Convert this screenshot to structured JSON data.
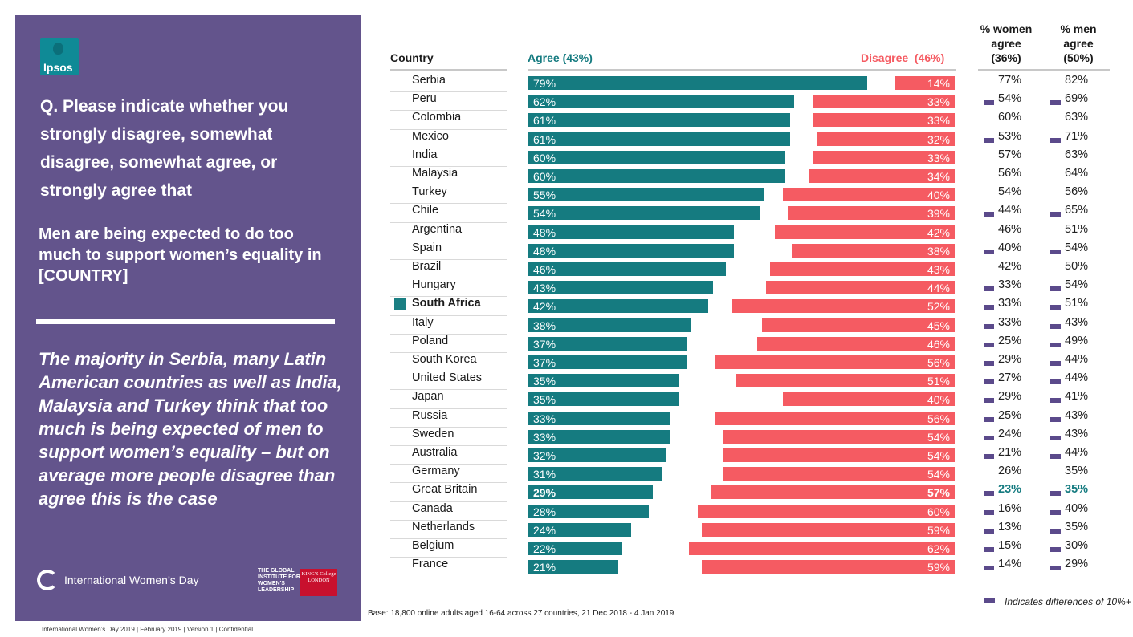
{
  "panel": {
    "logo": "Ipsos",
    "question": "Q. Please indicate whether you strongly disagree, somewhat disagree, somewhat agree, or strongly agree that",
    "statement": "Men are being expected to do too much to support women’s equality in [COUNTRY]",
    "insight": "The majority in Serbia, many Latin American countries as well as India, Malaysia and Turkey think that too much is being expected of men to support women’s equality – but on average more people disagree than agree this is the case",
    "iwd_label": "International Women’s Day",
    "giwl_label": "THE GLOBAL INSTITUTE FOR WOMEN'S LEADERSHIP",
    "kcl_label": "KING'S College LONDON"
  },
  "footer": "International Women’s Day 2019 | February 2019 | Version 1 | Confidential",
  "base_note": "Base: 18,800 online adults aged 16-64 across 27 countries, 21 Dec 2018 - 4 Jan 2019",
  "legend": "Indicates differences of 10%+",
  "colors": {
    "agree": "#157b80",
    "disagree": "#f55b62",
    "panel": "#63548c",
    "marker": "#5b4a8b"
  },
  "chart_data": {
    "type": "bar",
    "orientation": "horizontal",
    "headers": {
      "country": "Country",
      "agree": "Agree (43%)",
      "disagree": "Disagree  (46%)",
      "women": [
        "% women",
        "agree",
        "(36%)"
      ],
      "men": [
        "% men",
        "agree",
        "(50%)"
      ]
    },
    "categories": [
      "Serbia",
      "Peru",
      "Colombia",
      "Mexico",
      "India",
      "Malaysia",
      "Turkey",
      "Chile",
      "Argentina",
      "Spain",
      "Brazil",
      "Hungary",
      "South Africa",
      "Italy",
      "Poland",
      "South Korea",
      "United States",
      "Japan",
      "Russia",
      "Sweden",
      "Australia",
      "Germany",
      "Great Britain",
      "Canada",
      "Netherlands",
      "Belgium",
      "France"
    ],
    "series": [
      {
        "name": "Agree",
        "values": [
          79,
          62,
          61,
          61,
          60,
          60,
          55,
          54,
          48,
          48,
          46,
          43,
          42,
          38,
          37,
          37,
          35,
          35,
          33,
          33,
          32,
          31,
          29,
          28,
          24,
          22,
          21
        ]
      },
      {
        "name": "Disagree",
        "values": [
          14,
          33,
          33,
          32,
          33,
          34,
          40,
          39,
          42,
          38,
          43,
          44,
          52,
          45,
          46,
          56,
          51,
          40,
          56,
          54,
          54,
          54,
          57,
          60,
          59,
          62,
          59
        ]
      },
      {
        "name": "% women agree",
        "values": [
          77,
          54,
          60,
          53,
          57,
          56,
          54,
          44,
          46,
          40,
          42,
          33,
          33,
          33,
          25,
          29,
          27,
          29,
          25,
          24,
          21,
          26,
          23,
          16,
          13,
          15,
          14
        ]
      },
      {
        "name": "% men agree",
        "values": [
          82,
          69,
          63,
          71,
          63,
          64,
          56,
          65,
          51,
          54,
          50,
          54,
          51,
          43,
          49,
          44,
          44,
          41,
          43,
          43,
          44,
          35,
          35,
          40,
          35,
          30,
          29
        ]
      }
    ],
    "women_flag": [
      false,
      true,
      false,
      true,
      false,
      false,
      false,
      true,
      false,
      true,
      false,
      true,
      true,
      true,
      true,
      true,
      true,
      true,
      true,
      true,
      true,
      false,
      true,
      true,
      true,
      true,
      true
    ],
    "men_flag": [
      false,
      true,
      false,
      true,
      false,
      false,
      false,
      true,
      false,
      true,
      false,
      true,
      true,
      true,
      true,
      true,
      true,
      true,
      true,
      true,
      true,
      false,
      true,
      true,
      true,
      true,
      true
    ],
    "highlight": [
      "South Africa",
      "Great Britain"
    ],
    "value_suffix": "%"
  }
}
